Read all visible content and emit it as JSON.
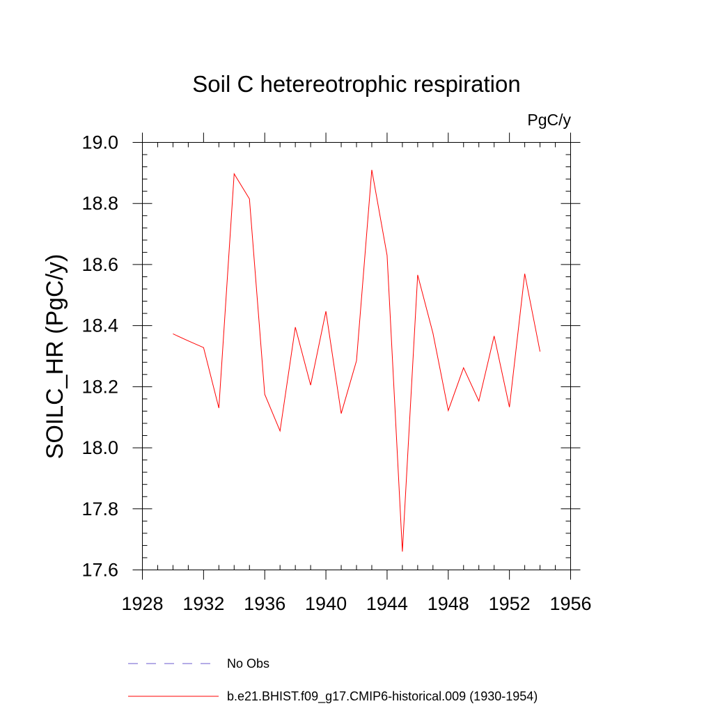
{
  "chart_data": {
    "type": "line",
    "title": "Soil C hetereotrophic respiration",
    "units": "PgC/y",
    "xlabel": "",
    "ylabel": "SOILC_HR  (PgC/y)",
    "xlim": [
      1928,
      1956
    ],
    "ylim": [
      17.6,
      19.0
    ],
    "xticks": [
      1928,
      1932,
      1936,
      1940,
      1944,
      1948,
      1952,
      1956
    ],
    "xtick_labels": [
      "1928",
      "1932",
      "1936",
      "1940",
      "1944",
      "1948",
      "1952",
      "1956"
    ],
    "yticks": [
      17.6,
      17.8,
      18.0,
      18.2,
      18.4,
      18.6,
      18.8,
      19.0
    ],
    "ytick_labels": [
      "17.6",
      "17.8",
      "18.0",
      "18.2",
      "18.4",
      "18.6",
      "18.8",
      "19.0"
    ],
    "grid": false,
    "legend_position": "bottom",
    "series": [
      {
        "name": "b.e21.BHIST.f09_g17.CMIP6-historical.009 (1930-1954)",
        "color": "#ff0000",
        "style": "solid",
        "x": [
          1930,
          1931,
          1932,
          1933,
          1934,
          1935,
          1936,
          1937,
          1938,
          1939,
          1940,
          1941,
          1942,
          1943,
          1944,
          1945,
          1946,
          1947,
          1948,
          1949,
          1950,
          1951,
          1952,
          1953,
          1954
        ],
        "y": [
          18.373,
          18.35,
          18.328,
          18.13,
          18.897,
          18.815,
          18.175,
          18.055,
          18.395,
          18.205,
          18.447,
          18.112,
          18.285,
          18.91,
          18.63,
          17.66,
          18.566,
          18.375,
          18.122,
          18.262,
          18.153,
          18.366,
          18.133,
          18.57,
          18.315
        ]
      }
    ],
    "legend": [
      {
        "label": "No Obs",
        "color": "#6a5acd",
        "style": "dashed"
      },
      {
        "label": "b.e21.BHIST.f09_g17.CMIP6-historical.009 (1930-1954)",
        "color": "#ff0000",
        "style": "solid"
      }
    ]
  }
}
